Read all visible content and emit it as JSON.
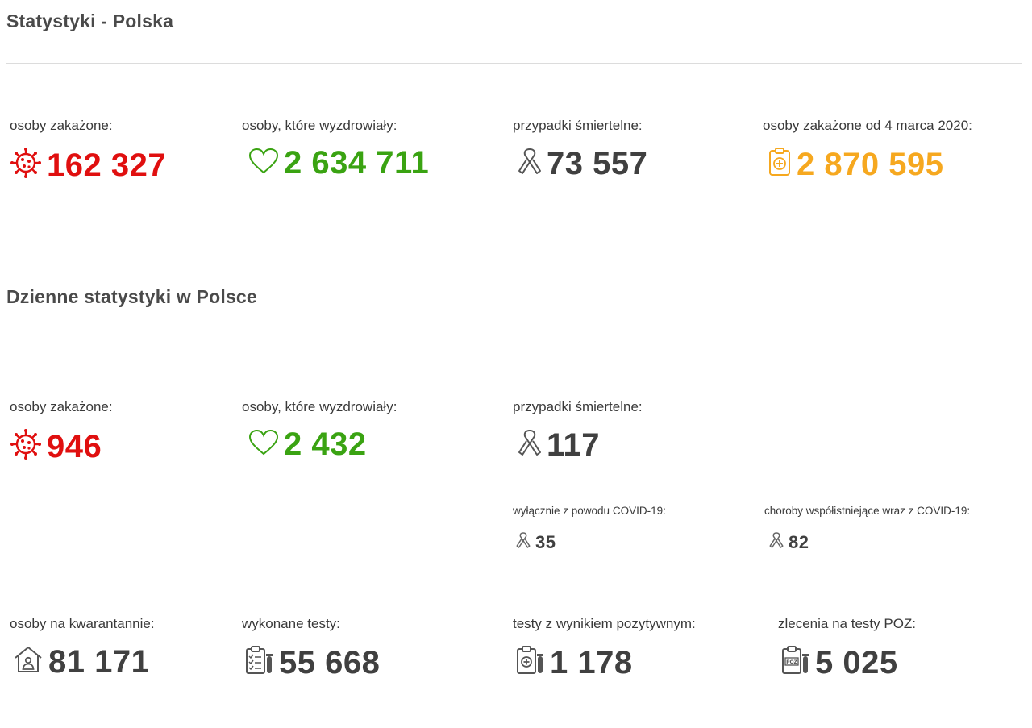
{
  "sections": {
    "total_title": "Statystyki - Polska",
    "daily_title": "Dzienne statystyki w Polsce"
  },
  "colors": {
    "infected": "#e00f0f",
    "recovered": "#3aa312",
    "deaths": "#404040",
    "cumulative": "#f6a81f"
  },
  "total": {
    "infected": {
      "label": "osoby zakażone:",
      "value": "162 327",
      "icon": "virus-icon"
    },
    "recovered": {
      "label": "osoby, które wyzdrowiały:",
      "value": "2 634 711",
      "icon": "heart-icon"
    },
    "deaths": {
      "label": "przypadki śmiertelne:",
      "value": "73 557",
      "icon": "ribbon-icon"
    },
    "cumulative": {
      "label": "osoby zakażone od 4 marca 2020:",
      "value": "2 870 595",
      "icon": "clipboard-plus-icon"
    }
  },
  "daily": {
    "infected": {
      "label": "osoby zakażone:",
      "value": "946",
      "icon": "virus-icon"
    },
    "recovered": {
      "label": "osoby, które wyzdrowiały:",
      "value": "2 432",
      "icon": "heart-icon"
    },
    "deaths": {
      "label": "przypadki śmiertelne:",
      "value": "117",
      "icon": "ribbon-icon"
    },
    "deaths_covid_only": {
      "label": "wyłącznie z powodu COVID-19:",
      "value": "35",
      "icon": "ribbon-icon"
    },
    "deaths_comorbid": {
      "label": "choroby współistniejące wraz z COVID-19:",
      "value": "82",
      "icon": "ribbon-icon"
    },
    "quarantine": {
      "label": "osoby na kwarantannie:",
      "value": "81 171",
      "icon": "house-person-icon"
    },
    "tests": {
      "label": "wykonane testy:",
      "value": "55 668",
      "icon": "clipboard-checklist-icon"
    },
    "tests_positive": {
      "label": "testy z wynikiem pozytywnym:",
      "value": "1 178",
      "icon": "clipboard-positive-icon"
    },
    "tests_poz": {
      "label": "zlecenia na testy POZ:",
      "value": "5 025",
      "icon": "clipboard-poz-icon"
    }
  }
}
